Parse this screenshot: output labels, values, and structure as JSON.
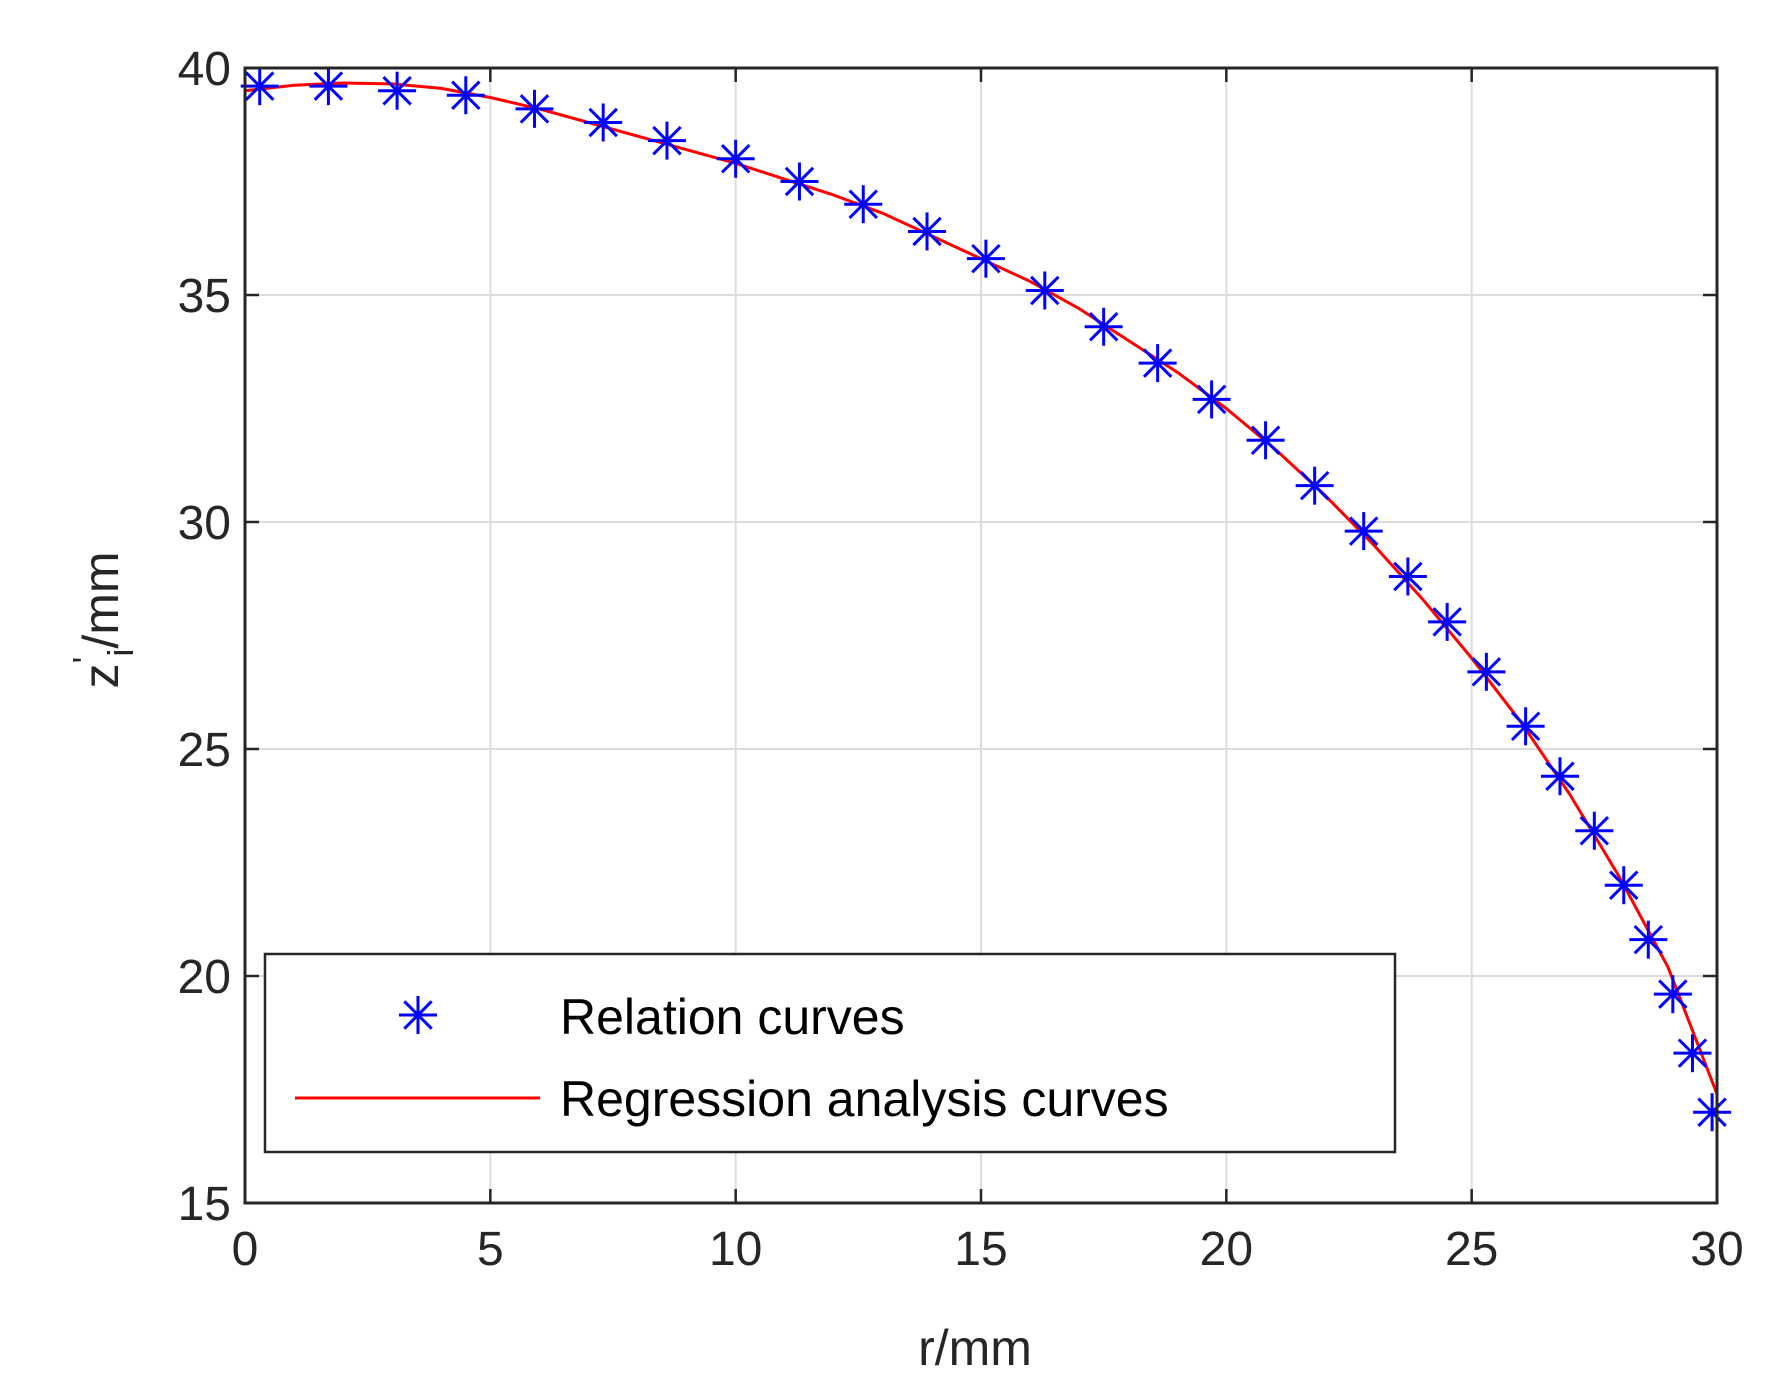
{
  "chart_data": {
    "type": "line",
    "xlabel": "r/mm",
    "ylabel": "z",
    "ylabel_sup": "'",
    "ylabel_sub": "i",
    "ylabel_suffix": "/mm",
    "xlim": [
      0,
      30
    ],
    "ylim": [
      15,
      40
    ],
    "xticks": [
      0,
      5,
      10,
      15,
      20,
      25,
      30
    ],
    "yticks": [
      15,
      20,
      25,
      30,
      35,
      40
    ],
    "grid": true,
    "legend_position": "bottom-left",
    "series": [
      {
        "name": "Relation curves",
        "style": "markers",
        "marker": "asterisk",
        "color": "#0000ff",
        "x": [
          0.3,
          1.7,
          3.1,
          4.5,
          5.9,
          7.3,
          8.6,
          10.0,
          11.3,
          12.6,
          13.9,
          15.1,
          16.3,
          17.5,
          18.6,
          19.7,
          20.8,
          21.8,
          22.8,
          23.7,
          24.5,
          25.3,
          26.1,
          26.8,
          27.5,
          28.1,
          28.6,
          29.1,
          29.5,
          29.9
        ],
        "y": [
          39.6,
          39.6,
          39.5,
          39.4,
          39.1,
          38.8,
          38.4,
          38.0,
          37.5,
          37.0,
          36.4,
          35.8,
          35.1,
          34.3,
          33.5,
          32.7,
          31.8,
          30.8,
          29.8,
          28.8,
          27.8,
          26.7,
          25.5,
          24.4,
          23.2,
          22.0,
          20.8,
          19.6,
          18.3,
          17.0
        ]
      },
      {
        "name": "Regression analysis curves",
        "style": "line",
        "color": "#ff0000",
        "x": [
          0,
          1,
          2,
          3,
          4,
          5,
          6,
          7,
          8,
          9,
          10,
          11,
          12,
          13,
          14,
          15,
          16,
          17,
          18,
          19,
          20,
          21,
          22,
          23,
          24,
          25,
          26,
          27,
          28,
          29,
          30
        ],
        "y": [
          39.5,
          39.62,
          39.67,
          39.65,
          39.55,
          39.35,
          39.1,
          38.8,
          38.5,
          38.2,
          37.9,
          37.55,
          37.2,
          36.8,
          36.3,
          35.8,
          35.3,
          34.7,
          34.0,
          33.3,
          32.5,
          31.6,
          30.6,
          29.5,
          28.3,
          27.0,
          25.6,
          24.0,
          22.2,
          20.2,
          17.4
        ]
      }
    ]
  }
}
